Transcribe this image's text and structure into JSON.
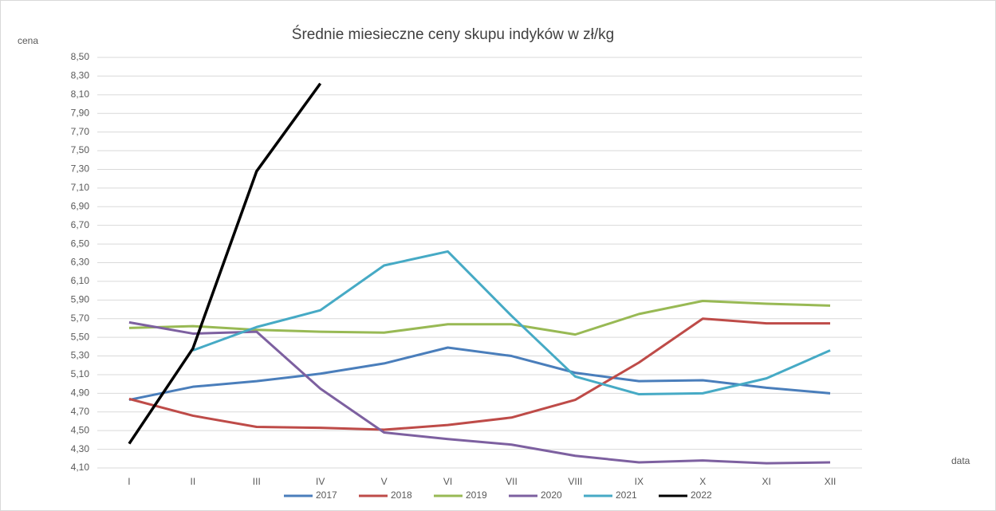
{
  "chart_data": {
    "type": "line",
    "title": "Średnie miesieczne ceny skupu indyków w zł/kg",
    "y_axis_label": "cena",
    "x_axis_label": "data",
    "categories": [
      "I",
      "II",
      "III",
      "IV",
      "V",
      "VI",
      "VII",
      "VIII",
      "IX",
      "X",
      "XI",
      "XII"
    ],
    "series": [
      {
        "name": "2017",
        "color": "#4a7ebb",
        "values": [
          4.83,
          4.97,
          5.03,
          5.11,
          5.22,
          5.39,
          5.3,
          5.12,
          5.03,
          5.04,
          4.96,
          4.9
        ]
      },
      {
        "name": "2018",
        "color": "#be4b48",
        "values": [
          4.84,
          4.66,
          4.54,
          4.53,
          4.51,
          4.56,
          4.64,
          4.83,
          5.23,
          5.7,
          5.65,
          5.65
        ]
      },
      {
        "name": "2019",
        "color": "#98b954",
        "values": [
          5.6,
          5.62,
          5.58,
          5.56,
          5.55,
          5.64,
          5.64,
          5.53,
          5.75,
          5.89,
          5.86,
          5.84
        ]
      },
      {
        "name": "2020",
        "color": "#7d60a0",
        "values": [
          5.66,
          5.54,
          5.56,
          4.95,
          4.48,
          4.41,
          4.35,
          4.23,
          4.16,
          4.18,
          4.15,
          4.16
        ]
      },
      {
        "name": "2021",
        "color": "#46aac5",
        "values": [
          null,
          5.36,
          5.61,
          5.79,
          6.27,
          6.42,
          5.73,
          5.08,
          4.89,
          4.9,
          5.06,
          5.36
        ]
      },
      {
        "name": "2022",
        "color": "#000000",
        "values": [
          4.36,
          5.38,
          7.28,
          8.22,
          null,
          null,
          null,
          null,
          null,
          null,
          null,
          null
        ]
      }
    ],
    "ylim": [
      4.1,
      8.5
    ],
    "yticks": [
      {
        "value": 4.1,
        "label": "4,10"
      },
      {
        "value": 4.3,
        "label": "4,30"
      },
      {
        "value": 4.5,
        "label": "4,50"
      },
      {
        "value": 4.7,
        "label": "4,70"
      },
      {
        "value": 4.9,
        "label": "4,90"
      },
      {
        "value": 5.1,
        "label": "5,10"
      },
      {
        "value": 5.3,
        "label": "5,30"
      },
      {
        "value": 5.5,
        "label": "5,50"
      },
      {
        "value": 5.7,
        "label": "5,70"
      },
      {
        "value": 5.9,
        "label": "5,90"
      },
      {
        "value": 6.1,
        "label": "6,10"
      },
      {
        "value": 6.3,
        "label": "6,30"
      },
      {
        "value": 6.5,
        "label": "6,50"
      },
      {
        "value": 6.7,
        "label": "6,70"
      },
      {
        "value": 6.9,
        "label": "6,90"
      },
      {
        "value": 7.1,
        "label": "7,10"
      },
      {
        "value": 7.3,
        "label": "7,30"
      },
      {
        "value": 7.5,
        "label": "7,50"
      },
      {
        "value": 7.7,
        "label": "7,70"
      },
      {
        "value": 7.9,
        "label": "7,90"
      },
      {
        "value": 8.1,
        "label": "8,10"
      },
      {
        "value": 8.3,
        "label": "8,30"
      },
      {
        "value": 8.5,
        "label": "8,50"
      }
    ],
    "grid": true,
    "legend": "bottom"
  }
}
